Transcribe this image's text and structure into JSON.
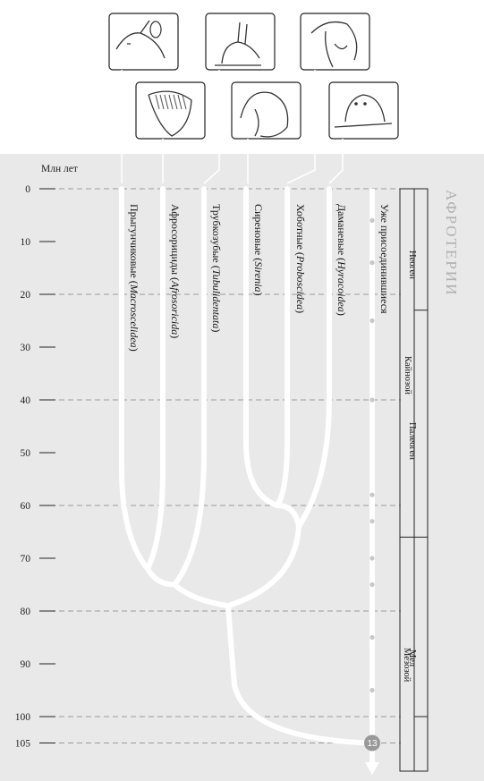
{
  "axis": {
    "title": "Млн лет",
    "ticks": [
      0,
      10,
      20,
      30,
      40,
      50,
      60,
      70,
      80,
      90,
      100,
      105
    ]
  },
  "side_title": "Афротерии",
  "clades": [
    {
      "name": "Прыгунчиковые",
      "latin": "Macroscelidea",
      "icon": "elephant-shrew-icon"
    },
    {
      "name": "Афросорициды",
      "latin": "Afrosoricida",
      "icon": "tenrec-icon"
    },
    {
      "name": "Трубкозубые",
      "latin": "Tubulidentata",
      "icon": "aardvark-icon"
    },
    {
      "name": "Сиреновые",
      "latin": "Sirenia",
      "icon": "manatee-icon"
    },
    {
      "name": "Хоботные",
      "latin": "Proboscidea",
      "icon": "elephant-icon"
    },
    {
      "name": "Даманевые",
      "latin": "Hyracoidea",
      "icon": "hyrax-icon"
    }
  ],
  "lineage_label": "Уже присоединившиеся",
  "badge": "13",
  "eras": {
    "neogene": "Неоген",
    "cenozoic": "Кайнозой",
    "paleogene": "Палеоген",
    "cretaceous": "Мел",
    "mesozoic": "Мезозой"
  },
  "colors": {
    "background_panel": "#e9e9e9",
    "branch": "#ffffff",
    "text": "#222222",
    "badge": "#999999",
    "side_title": "#b0b0b0"
  }
}
